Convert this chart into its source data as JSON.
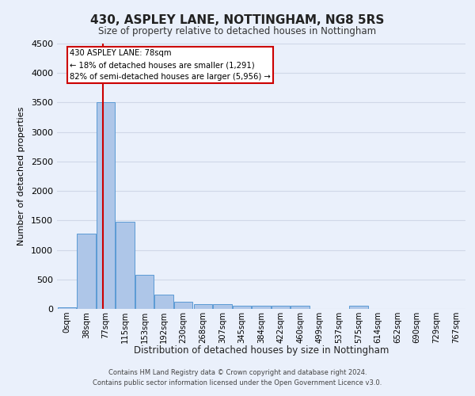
{
  "title": "430, ASPLEY LANE, NOTTINGHAM, NG8 5RS",
  "subtitle": "Size of property relative to detached houses in Nottingham",
  "xlabel": "Distribution of detached houses by size in Nottingham",
  "ylabel": "Number of detached properties",
  "footer_line1": "Contains HM Land Registry data © Crown copyright and database right 2024.",
  "footer_line2": "Contains public sector information licensed under the Open Government Licence v3.0.",
  "bar_labels": [
    "0sqm",
    "38sqm",
    "77sqm",
    "115sqm",
    "153sqm",
    "192sqm",
    "230sqm",
    "268sqm",
    "307sqm",
    "345sqm",
    "384sqm",
    "422sqm",
    "460sqm",
    "499sqm",
    "537sqm",
    "575sqm",
    "614sqm",
    "652sqm",
    "690sqm",
    "729sqm",
    "767sqm"
  ],
  "bar_values": [
    30,
    1280,
    3500,
    1480,
    580,
    240,
    115,
    80,
    80,
    50,
    50,
    50,
    50,
    0,
    0,
    55,
    0,
    0,
    0,
    0,
    0
  ],
  "bar_color": "#aec6e8",
  "bar_edge_color": "#5b9bd5",
  "grid_color": "#d0d8e8",
  "background_color": "#eaf0fb",
  "property_line_x": 1.85,
  "property_line_color": "#cc0000",
  "annotation_line1": "430 ASPLEY LANE: 78sqm",
  "annotation_line2": "← 18% of detached houses are smaller (1,291)",
  "annotation_line3": "82% of semi-detached houses are larger (5,956) →",
  "annotation_box_color": "#cc0000",
  "annotation_bg_color": "#ffffff",
  "ylim": [
    0,
    4500
  ],
  "yticks": [
    0,
    500,
    1000,
    1500,
    2000,
    2500,
    3000,
    3500,
    4000,
    4500
  ]
}
